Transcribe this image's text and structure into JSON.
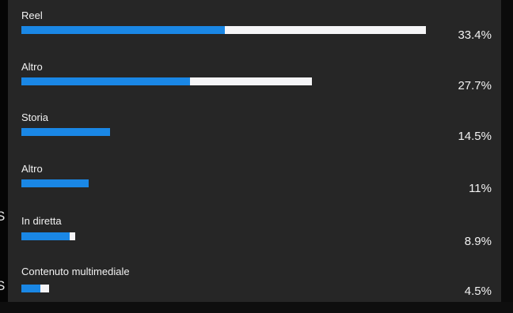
{
  "colors": {
    "panel_background": "#262626",
    "bar_primary": "#1a87e5",
    "bar_secondary": "#f5f5f7",
    "text": "#f2f2f2"
  },
  "breakdown": {
    "items": [
      {
        "label": "Reel",
        "value": "33.4%",
        "primary_fraction": 0.334,
        "secondary_fraction": 0.33
      },
      {
        "label": "Altro",
        "value": "27.7%",
        "primary_fraction": 0.277,
        "secondary_fraction": 0.2
      },
      {
        "label": "Storia",
        "value": "14.5%",
        "primary_fraction": 0.145,
        "secondary_fraction": 0.0
      },
      {
        "label": "Altro",
        "value": "11%",
        "primary_fraction": 0.11,
        "secondary_fraction": 0.0
      },
      {
        "label": "In diretta",
        "value": "8.9%",
        "primary_fraction": 0.079,
        "secondary_fraction": 0.009
      },
      {
        "label": "Contenuto multimediale",
        "value": "4.5%",
        "primary_fraction": 0.031,
        "secondary_fraction": 0.014
      }
    ]
  },
  "edge_glyphs": [
    "S",
    "S"
  ]
}
